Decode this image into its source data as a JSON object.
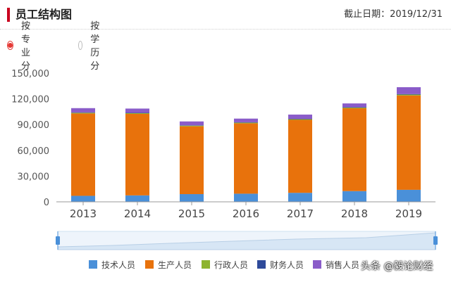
{
  "header": {
    "title": "员工结构图",
    "deadline": "截止日期：2019/12/31",
    "accent": "#c9001e"
  },
  "radios": [
    {
      "label": "按专业分",
      "selected": true
    },
    {
      "label": "按学历分",
      "selected": false
    }
  ],
  "chart_data": {
    "type": "bar",
    "stacked": true,
    "title": "",
    "xlabel": "",
    "ylabel": "",
    "ylim": [
      0,
      150000
    ],
    "yticks": [
      "0",
      "30,000",
      "60,000",
      "90,000",
      "120,000",
      "150,000"
    ],
    "categories": [
      "2013",
      "2014",
      "2015",
      "2016",
      "2017",
      "2018",
      "2019"
    ],
    "series": [
      {
        "name": "技术人员",
        "color": "#4a90d9",
        "values": [
          7000,
          7500,
          9000,
          9500,
          10500,
          12500,
          14000
        ]
      },
      {
        "name": "生产人员",
        "color": "#e8720c",
        "values": [
          96000,
          95000,
          79000,
          82000,
          85000,
          96500,
          110000
        ]
      },
      {
        "name": "行政人员",
        "color": "#8db42e",
        "values": [
          800,
          800,
          800,
          800,
          800,
          800,
          1000
        ]
      },
      {
        "name": "财务人员",
        "color": "#2e4a9a",
        "values": [
          400,
          400,
          400,
          400,
          400,
          400,
          600
        ]
      },
      {
        "name": "销售人员",
        "color": "#8a5cc9",
        "values": [
          5000,
          5000,
          4500,
          4300,
          5000,
          4500,
          8000
        ]
      }
    ],
    "grid": false,
    "legend_position": "bottom"
  },
  "watermark": "头条 @毅论财经"
}
